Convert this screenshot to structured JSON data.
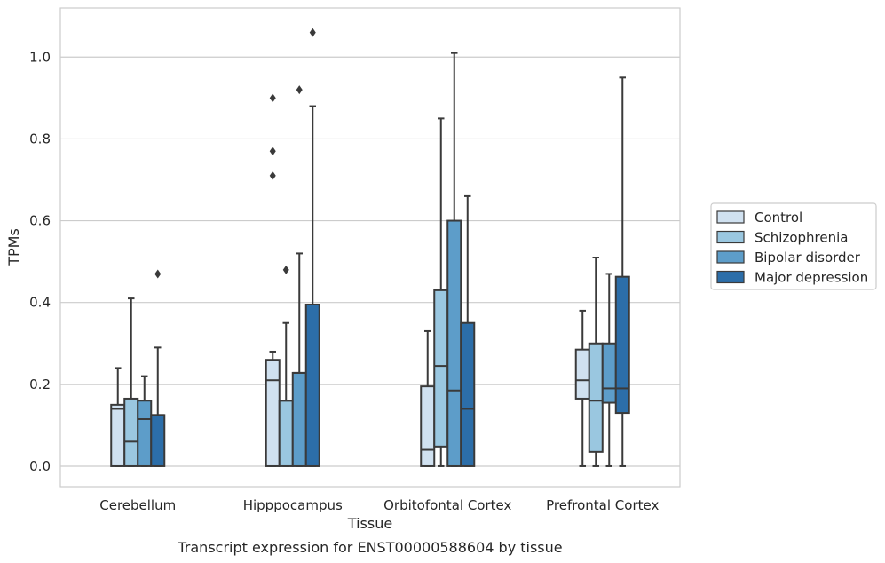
{
  "chart_data": {
    "type": "boxplot",
    "caption": "Transcript expression for ENST00000588604 by tissue",
    "xlabel": "Tissue",
    "ylabel": "TPMs",
    "ylim": [
      -0.05,
      1.12
    ],
    "yticks": [
      "0.0",
      "0.2",
      "0.4",
      "0.6",
      "0.8",
      "1.0"
    ],
    "ytick_values": [
      0.0,
      0.2,
      0.4,
      0.6,
      0.8,
      1.0
    ],
    "grid": true,
    "legend_position": "right",
    "categories": [
      "Cerebellum",
      "Hipppocampus",
      "Orbitofontal Cortex",
      "Prefrontal Cortex"
    ],
    "series": [
      {
        "name": "Control",
        "color": "#d0e1f0",
        "boxes": [
          {
            "whislo": 0.0,
            "q1": 0.0,
            "med": 0.14,
            "q3": 0.15,
            "whishi": 0.24,
            "fliers": []
          },
          {
            "whislo": 0.0,
            "q1": 0.0,
            "med": 0.21,
            "q3": 0.26,
            "whishi": 0.28,
            "fliers": [
              0.71,
              0.77,
              0.9
            ]
          },
          {
            "whislo": 0.0,
            "q1": 0.0,
            "med": 0.04,
            "q3": 0.195,
            "whishi": 0.33,
            "fliers": []
          },
          {
            "whislo": 0.0,
            "q1": 0.165,
            "med": 0.21,
            "q3": 0.285,
            "whishi": 0.38,
            "fliers": []
          }
        ]
      },
      {
        "name": "Schizophrenia",
        "color": "#9ac7e0",
        "boxes": [
          {
            "whislo": 0.0,
            "q1": 0.0,
            "med": 0.06,
            "q3": 0.165,
            "whishi": 0.41,
            "fliers": []
          },
          {
            "whislo": 0.0,
            "q1": 0.0,
            "med": 0.16,
            "q3": 0.16,
            "whishi": 0.35,
            "fliers": [
              0.48
            ]
          },
          {
            "whislo": 0.0,
            "q1": 0.048,
            "med": 0.245,
            "q3": 0.43,
            "whishi": 0.85,
            "fliers": []
          },
          {
            "whislo": 0.0,
            "q1": 0.035,
            "med": 0.16,
            "q3": 0.3,
            "whishi": 0.51,
            "fliers": []
          }
        ]
      },
      {
        "name": "Bipolar disorder",
        "color": "#5d9dc9",
        "boxes": [
          {
            "whislo": 0.0,
            "q1": 0.0,
            "med": 0.115,
            "q3": 0.16,
            "whishi": 0.22,
            "fliers": []
          },
          {
            "whislo": 0.0,
            "q1": 0.0,
            "med": 0.228,
            "q3": 0.228,
            "whishi": 0.52,
            "fliers": [
              0.92
            ]
          },
          {
            "whislo": 0.0,
            "q1": 0.0,
            "med": 0.185,
            "q3": 0.6,
            "whishi": 1.01,
            "fliers": []
          },
          {
            "whislo": 0.0,
            "q1": 0.155,
            "med": 0.19,
            "q3": 0.3,
            "whishi": 0.47,
            "fliers": []
          }
        ]
      },
      {
        "name": "Major depression",
        "color": "#2c6ea9",
        "boxes": [
          {
            "whislo": 0.0,
            "q1": 0.0,
            "med": 0.125,
            "q3": 0.125,
            "whishi": 0.29,
            "fliers": [
              0.47
            ]
          },
          {
            "whislo": 0.0,
            "q1": 0.0,
            "med": 0.395,
            "q3": 0.395,
            "whishi": 0.88,
            "fliers": [
              1.06
            ]
          },
          {
            "whislo": 0.0,
            "q1": 0.0,
            "med": 0.14,
            "q3": 0.35,
            "whishi": 0.66,
            "fliers": []
          },
          {
            "whislo": 0.0,
            "q1": 0.13,
            "med": 0.19,
            "q3": 0.463,
            "whishi": 0.95,
            "fliers": []
          }
        ]
      }
    ]
  }
}
